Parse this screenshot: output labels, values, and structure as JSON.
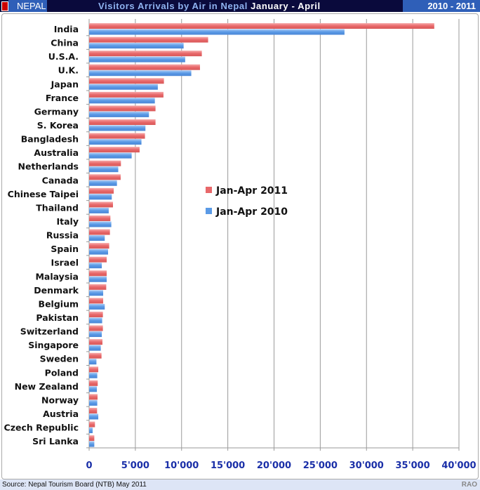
{
  "header": {
    "country": "NEPAL",
    "title_main": "Visitors Arrivals by Air in Nepal",
    "title_period": "January - April",
    "years": "2010 - 2011"
  },
  "footer": {
    "source": "Source: Nepal Tourism Board (NTB) May 2011",
    "author": "RAO"
  },
  "chart_data": {
    "type": "bar",
    "orientation": "horizontal",
    "title": "Visitors Arrivals by Air in Nepal January - April",
    "categories": [
      "India",
      "China",
      "U.S.A.",
      "U.K.",
      "Japan",
      "France",
      "Germany",
      "S. Korea",
      "Bangladesh",
      "Australia",
      "Netherlands",
      "Canada",
      "Chinese Taipei",
      "Thailand",
      "Italy",
      "Russia",
      "Spain",
      "Israel",
      "Malaysia",
      "Denmark",
      "Belgium",
      "Pakistan",
      "Switzerland",
      "Singapore",
      "Sweden",
      "Poland",
      "New Zealand",
      "Norway",
      "Austria",
      "Czech Republic",
      "Sri Lanka"
    ],
    "series": [
      {
        "name": "Jan-Apr 2011",
        "color": "#e8686a",
        "values": [
          37330,
          12870,
          12190,
          11990,
          8090,
          8040,
          7180,
          7180,
          6040,
          5460,
          3440,
          3410,
          2660,
          2580,
          2300,
          2250,
          2170,
          1900,
          1900,
          1850,
          1520,
          1490,
          1490,
          1440,
          1340,
          990,
          930,
          910,
          860,
          630,
          560
        ]
      },
      {
        "name": "Jan-Apr 2010",
        "color": "#5a9ae6",
        "values": [
          27620,
          10220,
          10390,
          11050,
          7430,
          7110,
          6470,
          6090,
          5660,
          4600,
          3150,
          3010,
          2450,
          2120,
          2400,
          1690,
          2050,
          1370,
          1900,
          1520,
          1690,
          1410,
          1370,
          1260,
          790,
          880,
          840,
          880,
          990,
          380,
          560
        ]
      }
    ],
    "xlim": [
      0,
      40000
    ],
    "xticks": [
      0,
      5000,
      10000,
      15000,
      20000,
      25000,
      30000,
      35000,
      40000
    ],
    "xtick_labels": [
      "0",
      "5'000",
      "10'000",
      "15'000",
      "20'000",
      "25'000",
      "30'000",
      "35'000",
      "40'000"
    ],
    "grid": true,
    "legend": "center"
  }
}
